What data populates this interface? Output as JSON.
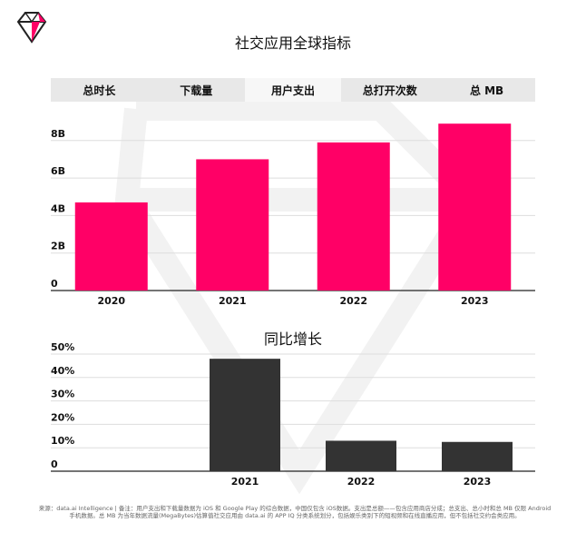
{
  "title": "社交应用全球指标",
  "tabs": [
    "总时长",
    "下载量",
    "用户支出",
    "总打开次数",
    "总 MB"
  ],
  "active_tab": 2,
  "colors": {
    "primary": "#ff0066",
    "secondary": "#333333",
    "grid": "#dddddd",
    "tab_bg": "#e8e8e8"
  },
  "chart_data": [
    {
      "type": "bar",
      "title": "",
      "categories": [
        "2020",
        "2021",
        "2022",
        "2023"
      ],
      "values": [
        4.7,
        7.0,
        7.9,
        8.9
      ],
      "yticks": [
        "0",
        "2B",
        "4B",
        "6B",
        "8B"
      ],
      "ylim": [
        0,
        9.2
      ],
      "grid": true,
      "color": "#ff0066"
    },
    {
      "type": "bar",
      "title": "同比增长",
      "categories": [
        "",
        "2021",
        "2022",
        "2023"
      ],
      "values": [
        null,
        48,
        13,
        12.5
      ],
      "yticks": [
        "0",
        "10%",
        "20%",
        "30%",
        "40%",
        "50%"
      ],
      "ylim": [
        0,
        50
      ],
      "grid": true,
      "color": "#333333"
    }
  ],
  "footnote": "来源：data.ai Intelligence | 备注：用户支出和下载量数据为 iOS 和 Google Play 的综合数据，中国仅包含 iOS数据。支出是总额——包含应用商店分成；总支出、总小时和总 MB 仅限 Android 手机数据。总 MB 为当年数据流量(MegaBytes)估算值社交应用由 data.ai 的 APP IQ 分类系统划分，包括娱乐类别下的短视频和在线直播应用，但不包括社交约会类应用。"
}
